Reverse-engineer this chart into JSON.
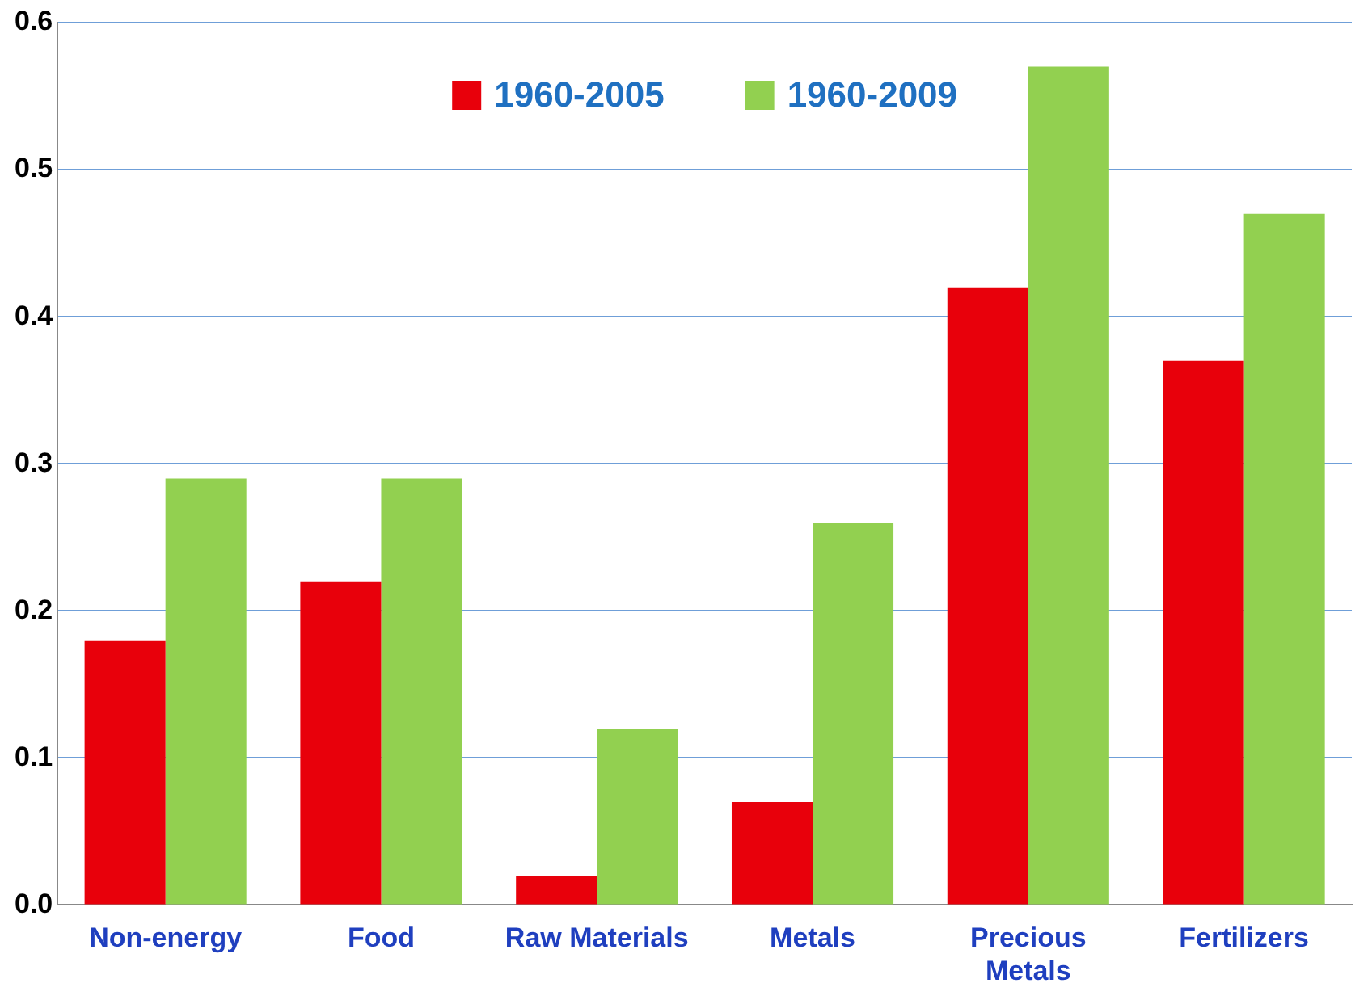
{
  "chart_data": {
    "type": "bar",
    "categories": [
      "Non-energy",
      "Food",
      "Raw Materials",
      "Metals",
      "Precious Metals",
      "Fertilizers"
    ],
    "series": [
      {
        "name": "1960-2005",
        "color": "#e8000b",
        "values": [
          0.18,
          0.22,
          0.02,
          0.07,
          0.42,
          0.37
        ]
      },
      {
        "name": "1960-2009",
        "color": "#92d050",
        "values": [
          0.29,
          0.29,
          0.12,
          0.26,
          0.57,
          0.47
        ]
      }
    ],
    "ylim": [
      0,
      0.6
    ],
    "yticks": [
      {
        "value": 0,
        "label": "0.0"
      },
      {
        "value": 0.1,
        "label": "0.1"
      },
      {
        "value": 0.2,
        "label": "0.2"
      },
      {
        "value": 0.3,
        "label": "0.3"
      },
      {
        "value": 0.4,
        "label": "0.4"
      },
      {
        "value": 0.5,
        "label": "0.5"
      },
      {
        "value": 0.6,
        "label": "0.6"
      }
    ],
    "grid": "y",
    "legend": "top"
  }
}
